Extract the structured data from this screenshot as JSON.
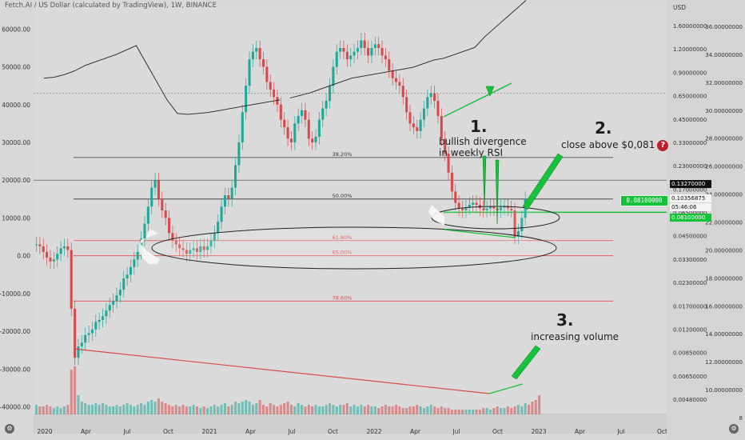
{
  "header": {
    "title": "Fetch.AI / US Dollar (calculated by TradingView), 1W, BINANCE"
  },
  "annotations": {
    "n1": "1.",
    "text1a": "bullish divergence",
    "text1b": "in weekly RSI",
    "n2": "2.",
    "text2": "close above $0,081",
    "qmark": "?",
    "n3": "3.",
    "text3": "increasing volume"
  },
  "fib": {
    "f382": "38.20%",
    "f50": "50.00%",
    "f618": "61.80%",
    "f65": "65.00%",
    "f786": "78.60%"
  },
  "green_box": "0.08100000",
  "colors": {
    "up": "#1ea89a",
    "down": "#d84a4a",
    "green": "#16c23a",
    "bg": "#d8d8d8",
    "fib_black": "#333333",
    "fib_red": "#e05050"
  },
  "chart_data": {
    "type": "candlestick",
    "title": "Fetch.AI / US Dollar (calculated by TradingView), 1W, BINANCE",
    "x_tick_labels": [
      "2020",
      "Apr",
      "Jul",
      "Oct",
      "2021",
      "Apr",
      "Jul",
      "Oct",
      "2022",
      "Apr",
      "Jul",
      "Oct",
      "2023",
      "Apr",
      "Jul",
      "Oct"
    ],
    "left_axis": {
      "tick_labels": [
        "60000.00",
        "50000.00",
        "40000.00",
        "30000.00",
        "20000.00",
        "10000.00",
        "0.00",
        "-10000.00",
        "-20000.00",
        "-30000.00",
        "-40000.00"
      ],
      "range": [
        -42000,
        66000
      ]
    },
    "right_axis_price": {
      "unit": "USD",
      "tick_labels": [
        "1.60000000",
        "1.20000000",
        "0.90000000",
        "0.65000000",
        "0.45000000",
        "0.33000000",
        "0.23000000",
        "0.17000000",
        "0.06500000",
        "0.04500000",
        "0.03300000",
        "0.02300000",
        "0.01700000",
        "0.01200000",
        "0.00850000",
        "0.00650000",
        "0.00480000"
      ],
      "highlighted": [
        {
          "label": "0.13270000",
          "style": "black"
        },
        {
          "label": "0.10356875",
          "style": "white"
        },
        {
          "label": "05:46:06",
          "style": "white"
        },
        {
          "label": "0.08100000",
          "style": "green"
        }
      ],
      "scale": "log"
    },
    "right_axis_rsi": {
      "tick_labels": [
        "36.00000000",
        "34.00000000",
        "32.00000000",
        "30.00000000",
        "28.00000000",
        "26.00000000",
        "24.00000000",
        "22.00000000",
        "20.00000000",
        "18.00000000",
        "16.00000000",
        "14.00000000",
        "12.00000000",
        "10.00000000",
        "8"
      ]
    },
    "fib_levels": [
      {
        "label": "38.20%",
        "value": 26000
      },
      {
        "label": "50.00%",
        "value": 15000
      },
      {
        "label": "61.80%",
        "value": 4000
      },
      {
        "label": "65.00%",
        "value": 0
      },
      {
        "label": "78.60%",
        "value": -12000
      }
    ],
    "horizontal_lines": [
      {
        "label": "0.08100000",
        "value": 11500
      }
    ],
    "close_series": [
      3000,
      2500,
      1000,
      -500,
      -1500,
      -1000,
      500,
      2000,
      2500,
      1500,
      -14000,
      -27000,
      -24000,
      -23000,
      -21000,
      -20500,
      -19500,
      -17500,
      -17000,
      -16000,
      -14500,
      -13000,
      -12000,
      -10500,
      -9000,
      -6000,
      -5000,
      -3000,
      -1000,
      1000,
      4500,
      8500,
      13000,
      18000,
      20000,
      15000,
      12000,
      10000,
      6000,
      4000,
      3000,
      2000,
      1500,
      500,
      1500,
      2000,
      1000,
      2500,
      1500,
      2500,
      4000,
      6000,
      9000,
      13000,
      16000,
      15000,
      18000,
      24000,
      30000,
      38000,
      45000,
      52000,
      54000,
      55000,
      52000,
      50000,
      46000,
      44000,
      42000,
      40000,
      36000,
      34000,
      31000,
      30000,
      35000,
      37000,
      38500,
      36000,
      31000,
      30000,
      31500,
      36000,
      39000,
      41000,
      45000,
      50000,
      54000,
      55000,
      54000,
      52000,
      53000,
      54000,
      55000,
      57000,
      55000,
      53000,
      55000,
      56000,
      55000,
      53000,
      52000,
      49000,
      47000,
      46000,
      45000,
      42000,
      38000,
      35000,
      34000,
      33000,
      36000,
      39000,
      42000,
      43000,
      41000,
      37000,
      31000,
      27000,
      22000,
      17000,
      14000,
      12500,
      12000,
      12800,
      13500,
      14000,
      13500,
      12500,
      12000,
      12500,
      13000,
      12500,
      12000,
      12800,
      13200,
      12500,
      12000,
      5000,
      6500,
      10000,
      15000
    ],
    "volume_series": [
      6,
      5,
      5,
      6,
      5,
      4,
      5,
      4,
      5,
      6,
      28,
      30,
      12,
      8,
      7,
      6,
      6,
      7,
      6,
      7,
      6,
      5,
      5,
      6,
      5,
      6,
      7,
      6,
      5,
      6,
      7,
      6,
      8,
      9,
      8,
      10,
      8,
      7,
      6,
      5,
      6,
      5,
      6,
      5,
      5,
      6,
      5,
      4,
      5,
      4,
      5,
      6,
      5,
      6,
      7,
      5,
      6,
      8,
      7,
      8,
      9,
      8,
      6,
      7,
      9,
      6,
      5,
      7,
      6,
      5,
      6,
      7,
      8,
      6,
      5,
      7,
      6,
      5,
      6,
      5,
      6,
      5,
      5,
      6,
      7,
      6,
      5,
      6,
      6,
      7,
      5,
      6,
      5,
      6,
      5,
      6,
      5,
      5,
      4,
      5,
      6,
      5,
      5,
      6,
      5,
      4,
      4,
      5,
      5,
      6,
      5,
      4,
      5,
      6,
      5,
      4,
      5,
      4,
      4,
      3,
      3,
      3,
      3,
      3,
      3,
      3,
      3,
      3,
      4,
      4,
      3,
      4,
      5,
      4,
      4,
      5,
      4,
      5,
      6,
      5,
      7,
      6,
      8,
      9,
      12
    ],
    "rsi_series": [
      64,
      65,
      68,
      72,
      78,
      82,
      86,
      90,
      95,
      100,
      80,
      60,
      40,
      25,
      24,
      25,
      26,
      28,
      30,
      32,
      34,
      36,
      38,
      40,
      42,
      45,
      48,
      52,
      56,
      60,
      64,
      66,
      68,
      70,
      72,
      74,
      76,
      80,
      84,
      86,
      90,
      94,
      98,
      110,
      120,
      130,
      140,
      150
    ],
    "rsi_divergence": {
      "from_low": 25,
      "to_low": 34
    }
  }
}
